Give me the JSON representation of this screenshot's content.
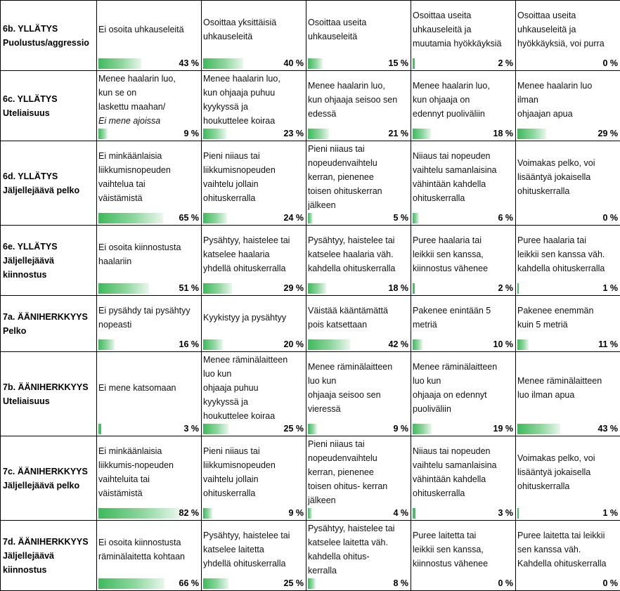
{
  "rows": [
    {
      "title": "6b. YLLÄTYS\nPuolustus/aggressio",
      "cells": [
        {
          "text": "Ei osoita uhkauseleitä",
          "value": 43,
          "pct": "43 %"
        },
        {
          "text": "Osoittaa yksittäisiä\nuhkauseleitä",
          "value": 40,
          "pct": "40 %"
        },
        {
          "text": "Osoittaa useita\nuhkauseleitä",
          "value": 15,
          "pct": "15 %"
        },
        {
          "text": "Osoittaa useita\nuhkauseleitä ja\nmuutamia hyökkäyksiä",
          "value": 2,
          "pct": "2 %"
        },
        {
          "text": "Osoittaa useita\nuhkauseleitä ja\nhyökkäyksiä, voi purra",
          "value": 0,
          "pct": "0 %"
        }
      ]
    },
    {
      "title": "6c. YLLÄTYS\nUteliaisuus",
      "cells": [
        {
          "text": "Menee haalarin luo,\nkun se on\nlaskettu maahan/",
          "italic": "Ei mene ajoissa",
          "value": 9,
          "pct": "9 %"
        },
        {
          "text": "Menee haalarin luo,\nkun ohjaaja puhuu\nkyykyssä ja\nhoukuttelee koiraa",
          "value": 23,
          "pct": "23 %"
        },
        {
          "text": "Menee haalarin luo,\nkun ohjaaja seisoo sen\nedessä",
          "value": 21,
          "pct": "21 %"
        },
        {
          "text": "Menee haalarin luo,\nkun ohjaaja on\nedennyt puoliväliin",
          "value": 18,
          "pct": "18 %"
        },
        {
          "text": "Menee haalarin luo\nilman\nohjaajan apua",
          "value": 29,
          "pct": "29 %"
        }
      ]
    },
    {
      "title": "6d. YLLÄTYS\nJäljellejäävä pelko",
      "cells": [
        {
          "text": "Ei minkäänlaisia\nliikkumisnopeuden\nvaihtelua tai\nväistämistä",
          "value": 65,
          "pct": "65 %"
        },
        {
          "text": "Pieni niiaus tai\nliikkumisnopeuden\nvaihtelu jollain\nohituskerralla",
          "value": 24,
          "pct": "24 %"
        },
        {
          "text": "Pieni niiaus tai\nnopeudenvaihtelu\nkerran, pienenee\ntoisen ohituskerran\njälkeen",
          "value": 5,
          "pct": "5 %"
        },
        {
          "text": "Niiaus tai nopeuden\nvaihtelu samanlaisina\nvähintään kahdella\nohituskerralla",
          "value": 6,
          "pct": "6 %"
        },
        {
          "text": "Voimakas pelko, voi\nlisääntyä jokaisella\nohituskerralla",
          "value": 0,
          "pct": "0 %"
        }
      ]
    },
    {
      "title": "6e. YLLÄTYS\nJäljellejäävä\nkiinnostus",
      "cells": [
        {
          "text": "Ei osoita kiinnostusta\nhaalariin",
          "value": 51,
          "pct": "51 %"
        },
        {
          "text": "Pysähtyy, haistelee tai\nkatselee haalaria\nyhdellä ohituskerralla",
          "value": 29,
          "pct": "29 %"
        },
        {
          "text": "Pysähtyy, haistelee tai\nkatselee haalaria väh.\nkahdella ohituskerralla",
          "value": 18,
          "pct": "18 %"
        },
        {
          "text": "Puree haalaria tai\nleikkii sen kanssa,\nkiinnostus vähenee",
          "value": 2,
          "pct": "2 %"
        },
        {
          "text": "Puree haalaria tai\nleikkii sen kanssa väh.\nkahdella ohituskerralla",
          "value": 1,
          "pct": "1 %"
        }
      ]
    },
    {
      "title": "7a. ÄÄNIHERKKYYS\nPelko",
      "cells": [
        {
          "text": "Ei pysähdy tai pysähtyy\nnopeasti",
          "value": 16,
          "pct": "16 %"
        },
        {
          "text": "Kyykistyy ja pysähtyy",
          "value": 20,
          "pct": "20 %"
        },
        {
          "text": "Väistää kääntämättä\npois katsettaan",
          "value": 42,
          "pct": "42 %"
        },
        {
          "text": "Pakenee enintään 5\nmetriä",
          "value": 10,
          "pct": "10 %"
        },
        {
          "text": "Pakenee enemmän\nkuin 5 metriä",
          "value": 11,
          "pct": "11 %"
        }
      ]
    },
    {
      "title": "7b. ÄÄNIHERKKYYS\nUteliaisuus",
      "cells": [
        {
          "text": "Ei mene katsomaan",
          "value": 3,
          "pct": "3 %"
        },
        {
          "text": "Menee räminälaitteen\nluo kun\nohjaaja puhuu\nkyykyssä ja\nhoukuttelee koiraa",
          "value": 25,
          "pct": "25 %"
        },
        {
          "text": "Menee räminälaitteen\nluo kun\nohjaaja seisoo sen\nvieressä",
          "value": 9,
          "pct": "9 %"
        },
        {
          "text": "Menee räminälaitteen\nluo kun\nohjaaja on edennyt\npuoliväliin",
          "value": 19,
          "pct": "19 %"
        },
        {
          "text": "Menee räminälaitteen\nluo ilman apua",
          "value": 43,
          "pct": "43 %"
        }
      ]
    },
    {
      "title": "7c. ÄÄNIHERKKYYS\nJäljellejäävä pelko",
      "cells": [
        {
          "text": "Ei minkäänlaisia\nliikkumis-nopeuden\nvaihteluita tai\nväistämistä",
          "value": 82,
          "pct": "82 %"
        },
        {
          "text": "Pieni niiaus tai\nliikkumisnopeuden\nvaihtelu jollain\nohituskerralla",
          "value": 9,
          "pct": "9 %"
        },
        {
          "text": "Pieni niiaus tai\nnopeudenvaihtelu\nkerran, pienenee\ntoisen ohitus- kerran\njälkeen",
          "value": 4,
          "pct": "4 %"
        },
        {
          "text": "Niiaus tai nopeuden\nvaihtelu samanlaisina\nvähintään kahdella\nohituskerralla",
          "value": 3,
          "pct": "3 %"
        },
        {
          "text": "Voimakas pelko, voi\nlisääntyä jokaisella\nohituskerralla",
          "value": 1,
          "pct": "1 %"
        }
      ]
    },
    {
      "title": "7d. ÄÄNIHERKKYYS\nJäljellejäävä\nkiinnostus",
      "cells": [
        {
          "text": "Ei osoita kiinnostusta\nräminälaitetta kohtaan",
          "value": 66,
          "pct": "66 %"
        },
        {
          "text": "Pysähtyy, haistelee tai\nkatselee laitetta\nyhdellä ohituskerralla",
          "value": 25,
          "pct": "25 %"
        },
        {
          "text": "Pysähtyy, haistelee tai\nkatselee laitetta väh.\nkahdella ohitus-\nkerralla",
          "value": 8,
          "pct": "8 %"
        },
        {
          "text": "Puree laitetta tai\nleikkii sen kanssa,\nkiinnostus vähenee",
          "value": 0,
          "pct": "0 %"
        },
        {
          "text": "Puree laitetta tai leikkii\nsen kanssa väh.\nKahdella ohituskerralla",
          "value": 0,
          "pct": "0 %"
        }
      ]
    }
  ],
  "colors": {
    "bar": "#3dba5c",
    "border": "#000000"
  }
}
